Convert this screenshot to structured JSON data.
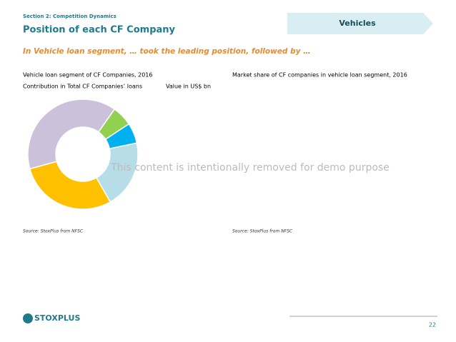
{
  "header": {
    "section": "Section 2: Competition Dynamics",
    "title": "Position of each CF Company",
    "tab": "Vehicles"
  },
  "headline": "In Vehicle loan segment, … took the leading position, followed by …",
  "left": {
    "subtitle": "Contribution in Total CF Companies’ loans",
    "unit": "Value in US$ bn",
    "source": "Source: StoxPlus from NFSC"
  },
  "right": {
    "title": "Market share of CF companies in vehicle loan segment, 2016",
    "source": "Source: StoxPlus from NFSC"
  },
  "watermark": "This content is intentionally removed for demo purpose",
  "footer": {
    "logo": "STOXPLUS",
    "page": "22"
  },
  "chart_data": {
    "type": "pie",
    "title": "Vehicle loan segment of CF Companies, 2016",
    "categories": [
      null,
      null,
      null,
      null,
      null
    ],
    "values": [
      6,
      6,
      20,
      29,
      39
    ],
    "colors": [
      "#92d050",
      "#00b0f0",
      "#b7dde8",
      "#ffc000",
      "#ccc1da"
    ]
  }
}
